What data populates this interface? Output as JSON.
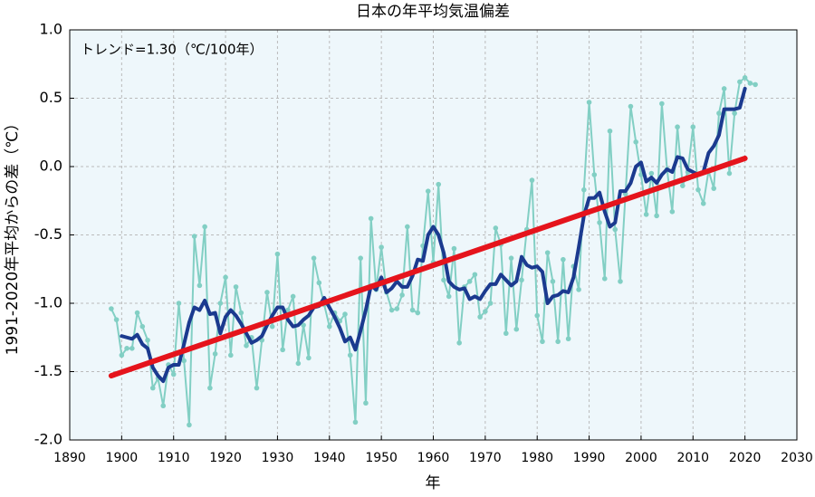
{
  "chart_data": {
    "type": "line",
    "title": "日本の年平均気温偏差",
    "xlabel": "年",
    "ylabel": "1991-2020年平均からの差（℃）",
    "annotation": "トレンド=1.30（℃/100年）",
    "xlim": [
      1890,
      2030
    ],
    "xticks": [
      1890,
      1900,
      1910,
      1920,
      1930,
      1940,
      1950,
      1960,
      1970,
      1980,
      1990,
      2000,
      2010,
      2020,
      2030
    ],
    "ylim": [
      -2.0,
      1.0
    ],
    "yticks": [
      {
        "value": -2.0,
        "label": "-2.0"
      },
      -1.5,
      {
        "value": -1.0,
        "label": "-1.0"
      },
      -0.5,
      {
        "value": 0.0,
        "label": "0.0"
      },
      0.5,
      {
        "value": 1.0,
        "label": "1.0"
      }
    ],
    "grid": true,
    "background": "#eef7fb",
    "series": [
      {
        "color": "#82cfc4",
        "markers": true,
        "width": 2,
        "x": [
          1898,
          1899,
          1900,
          1901,
          1902,
          1903,
          1904,
          1905,
          1906,
          1907,
          1908,
          1909,
          1910,
          1911,
          1912,
          1913,
          1914,
          1915,
          1916,
          1917,
          1918,
          1919,
          1920,
          1921,
          1922,
          1923,
          1924,
          1925,
          1926,
          1927,
          1928,
          1929,
          1930,
          1931,
          1932,
          1933,
          1934,
          1935,
          1936,
          1937,
          1938,
          1939,
          1940,
          1941,
          1942,
          1943,
          1944,
          1945,
          1946,
          1947,
          1948,
          1949,
          1950,
          1951,
          1952,
          1953,
          1954,
          1955,
          1956,
          1957,
          1958,
          1959,
          1960,
          1961,
          1962,
          1963,
          1964,
          1965,
          1966,
          1967,
          1968,
          1969,
          1970,
          1971,
          1972,
          1973,
          1974,
          1975,
          1976,
          1977,
          1978,
          1979,
          1980,
          1981,
          1982,
          1983,
          1984,
          1985,
          1986,
          1987,
          1988,
          1989,
          1990,
          1991,
          1992,
          1993,
          1994,
          1995,
          1996,
          1997,
          1998,
          1999,
          2000,
          2001,
          2002,
          2003,
          2004,
          2005,
          2006,
          2007,
          2008,
          2009,
          2010,
          2011,
          2012,
          2013,
          2014,
          2015,
          2016,
          2017,
          2018,
          2019,
          2020,
          2021,
          2022
        ],
        "values": [
          -1.04,
          -1.12,
          -1.38,
          -1.33,
          -1.33,
          -1.07,
          -1.17,
          -1.27,
          -1.62,
          -1.55,
          -1.75,
          -1.45,
          -1.52,
          -1.0,
          -1.42,
          -1.89,
          -0.51,
          -0.87,
          -0.44,
          -1.62,
          -1.37,
          -1.0,
          -0.81,
          -1.38,
          -0.88,
          -1.07,
          -1.31,
          -1.25,
          -1.62,
          -1.27,
          -0.92,
          -1.17,
          -0.64,
          -1.34,
          -1.05,
          -0.95,
          -1.44,
          -1.16,
          -1.4,
          -0.67,
          -0.85,
          -1.01,
          -1.17,
          -1.07,
          -1.13,
          -1.08,
          -1.38,
          -1.87,
          -0.67,
          -1.73,
          -0.38,
          -0.9,
          -0.59,
          -0.92,
          -1.05,
          -1.04,
          -0.94,
          -0.44,
          -1.05,
          -1.07,
          -0.58,
          -0.18,
          -0.7,
          -0.13,
          -0.83,
          -0.95,
          -0.6,
          -1.29,
          -0.88,
          -0.84,
          -0.79,
          -1.1,
          -1.06,
          -1.0,
          -0.45,
          -0.57,
          -1.22,
          -0.67,
          -1.19,
          -0.83,
          -0.46,
          -0.1,
          -1.09,
          -1.28,
          -0.63,
          -0.84,
          -1.28,
          -0.68,
          -1.26,
          -0.73,
          -0.9,
          -0.17,
          0.47,
          -0.06,
          -0.41,
          -0.82,
          0.26,
          -0.46,
          -0.84,
          -0.2,
          0.44,
          0.18,
          -0.06,
          -0.35,
          -0.05,
          -0.36,
          0.46,
          -0.02,
          -0.33,
          0.29,
          -0.14,
          -0.04,
          0.29,
          -0.17,
          -0.27,
          -0.03,
          -0.16,
          0.39,
          0.57,
          -0.05,
          0.39,
          0.62,
          0.65,
          0.61,
          0.6
        ]
      },
      {
        "color": "#1b3a8f",
        "markers": false,
        "width": 4,
        "x": [
          1900,
          1901,
          1902,
          1903,
          1904,
          1905,
          1906,
          1907,
          1908,
          1909,
          1910,
          1911,
          1912,
          1913,
          1914,
          1915,
          1916,
          1917,
          1918,
          1919,
          1920,
          1921,
          1922,
          1923,
          1924,
          1925,
          1926,
          1927,
          1928,
          1929,
          1930,
          1931,
          1932,
          1933,
          1934,
          1935,
          1936,
          1937,
          1938,
          1939,
          1940,
          1941,
          1942,
          1943,
          1944,
          1945,
          1946,
          1947,
          1948,
          1949,
          1950,
          1951,
          1952,
          1953,
          1954,
          1955,
          1956,
          1957,
          1958,
          1959,
          1960,
          1961,
          1962,
          1963,
          1964,
          1965,
          1966,
          1967,
          1968,
          1969,
          1970,
          1971,
          1972,
          1973,
          1974,
          1975,
          1976,
          1977,
          1978,
          1979,
          1980,
          1981,
          1982,
          1983,
          1984,
          1985,
          1986,
          1987,
          1988,
          1989,
          1990,
          1991,
          1992,
          1993,
          1994,
          1995,
          1996,
          1997,
          1998,
          1999,
          2000,
          2001,
          2002,
          2003,
          2004,
          2005,
          2006,
          2007,
          2008,
          2009,
          2010,
          2011,
          2012,
          2013,
          2014,
          2015,
          2016,
          2017,
          2018,
          2019,
          2020
        ],
        "values": [
          -1.24,
          -1.25,
          -1.26,
          -1.23,
          -1.3,
          -1.33,
          -1.47,
          -1.53,
          -1.57,
          -1.47,
          -1.45,
          -1.45,
          -1.3,
          -1.14,
          -1.03,
          -1.05,
          -0.98,
          -1.08,
          -1.07,
          -1.22,
          -1.1,
          -1.05,
          -1.09,
          -1.15,
          -1.22,
          -1.29,
          -1.27,
          -1.24,
          -1.16,
          -1.09,
          -1.03,
          -1.03,
          -1.12,
          -1.17,
          -1.16,
          -1.12,
          -1.09,
          -1.03,
          -1.02,
          -0.96,
          -1.03,
          -1.1,
          -1.18,
          -1.28,
          -1.25,
          -1.34,
          -1.2,
          -1.05,
          -0.87,
          -0.9,
          -0.81,
          -0.92,
          -0.89,
          -0.84,
          -0.88,
          -0.88,
          -0.8,
          -0.68,
          -0.69,
          -0.5,
          -0.44,
          -0.5,
          -0.63,
          -0.84,
          -0.88,
          -0.9,
          -0.89,
          -0.97,
          -0.95,
          -0.97,
          -0.91,
          -0.86,
          -0.86,
          -0.79,
          -0.83,
          -0.87,
          -0.84,
          -0.66,
          -0.72,
          -0.74,
          -0.73,
          -0.77,
          -1.0,
          -0.95,
          -0.94,
          -0.91,
          -0.92,
          -0.81,
          -0.59,
          -0.36,
          -0.23,
          -0.23,
          -0.19,
          -0.33,
          -0.44,
          -0.41,
          -0.18,
          -0.18,
          -0.12,
          0.0,
          0.03,
          -0.11,
          -0.08,
          -0.12,
          -0.06,
          -0.02,
          -0.04,
          0.07,
          0.06,
          -0.02,
          -0.04,
          -0.06,
          -0.04,
          0.1,
          0.15,
          0.23,
          0.42,
          0.42,
          0.42,
          0.43,
          0.57
        ]
      },
      {
        "color": "#e5141c",
        "markers": false,
        "width": 6,
        "x": [
          1898,
          2020
        ],
        "values": [
          -1.53,
          0.06
        ]
      }
    ]
  }
}
